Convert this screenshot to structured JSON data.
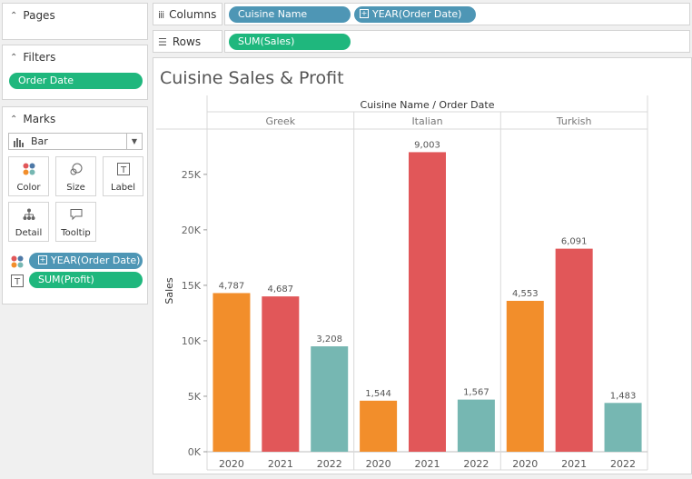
{
  "pages": {
    "title": "Pages"
  },
  "filters": {
    "title": "Filters",
    "pills": [
      "Order Date"
    ]
  },
  "marks": {
    "title": "Marks",
    "mark_type": "Bar",
    "cards": [
      "Color",
      "Size",
      "Label",
      "Detail",
      "Tooltip"
    ],
    "fields": [
      {
        "icon": "color-dots-icon",
        "label": "YEAR(Order Date)",
        "color": "#4e96b5"
      },
      {
        "icon": "text-label-icon",
        "label": "SUM(Profit)",
        "color": "#1fb77d"
      }
    ]
  },
  "columns_shelf": {
    "title": "Columns",
    "pills": [
      "Cuisine Name",
      "YEAR(Order Date)"
    ]
  },
  "rows_shelf": {
    "title": "Rows",
    "pills": [
      "SUM(Sales)"
    ]
  },
  "colors": {
    "2020": "#f28e2b",
    "2021": "#e15759",
    "2022": "#76b7b2",
    "pill_green": "#1fb77d",
    "pill_blue": "#4e96b5"
  },
  "chart_data": {
    "type": "bar",
    "title": "Cuisine Sales & Profit",
    "header": "Cuisine Name / Order Date",
    "ylabel": "Sales",
    "ylim": [
      0,
      29000
    ],
    "yticks": [
      0,
      5000,
      10000,
      15000,
      20000,
      25000
    ],
    "ytick_labels": [
      "0K",
      "5K",
      "10K",
      "15K",
      "20K",
      "25K"
    ],
    "grid": false,
    "groups": [
      {
        "name": "Greek",
        "bars": [
          {
            "year": "2020",
            "sales": 14300,
            "profit_label": "4,787"
          },
          {
            "year": "2021",
            "sales": 14000,
            "profit_label": "4,687"
          },
          {
            "year": "2022",
            "sales": 9500,
            "profit_label": "3,208"
          }
        ]
      },
      {
        "name": "Italian",
        "bars": [
          {
            "year": "2020",
            "sales": 4600,
            "profit_label": "1,544"
          },
          {
            "year": "2021",
            "sales": 27000,
            "profit_label": "9,003"
          },
          {
            "year": "2022",
            "sales": 4700,
            "profit_label": "1,567"
          }
        ]
      },
      {
        "name": "Turkish",
        "bars": [
          {
            "year": "2020",
            "sales": 13600,
            "profit_label": "4,553"
          },
          {
            "year": "2021",
            "sales": 18300,
            "profit_label": "6,091"
          },
          {
            "year": "2022",
            "sales": 4400,
            "profit_label": "1,483"
          }
        ]
      }
    ]
  }
}
